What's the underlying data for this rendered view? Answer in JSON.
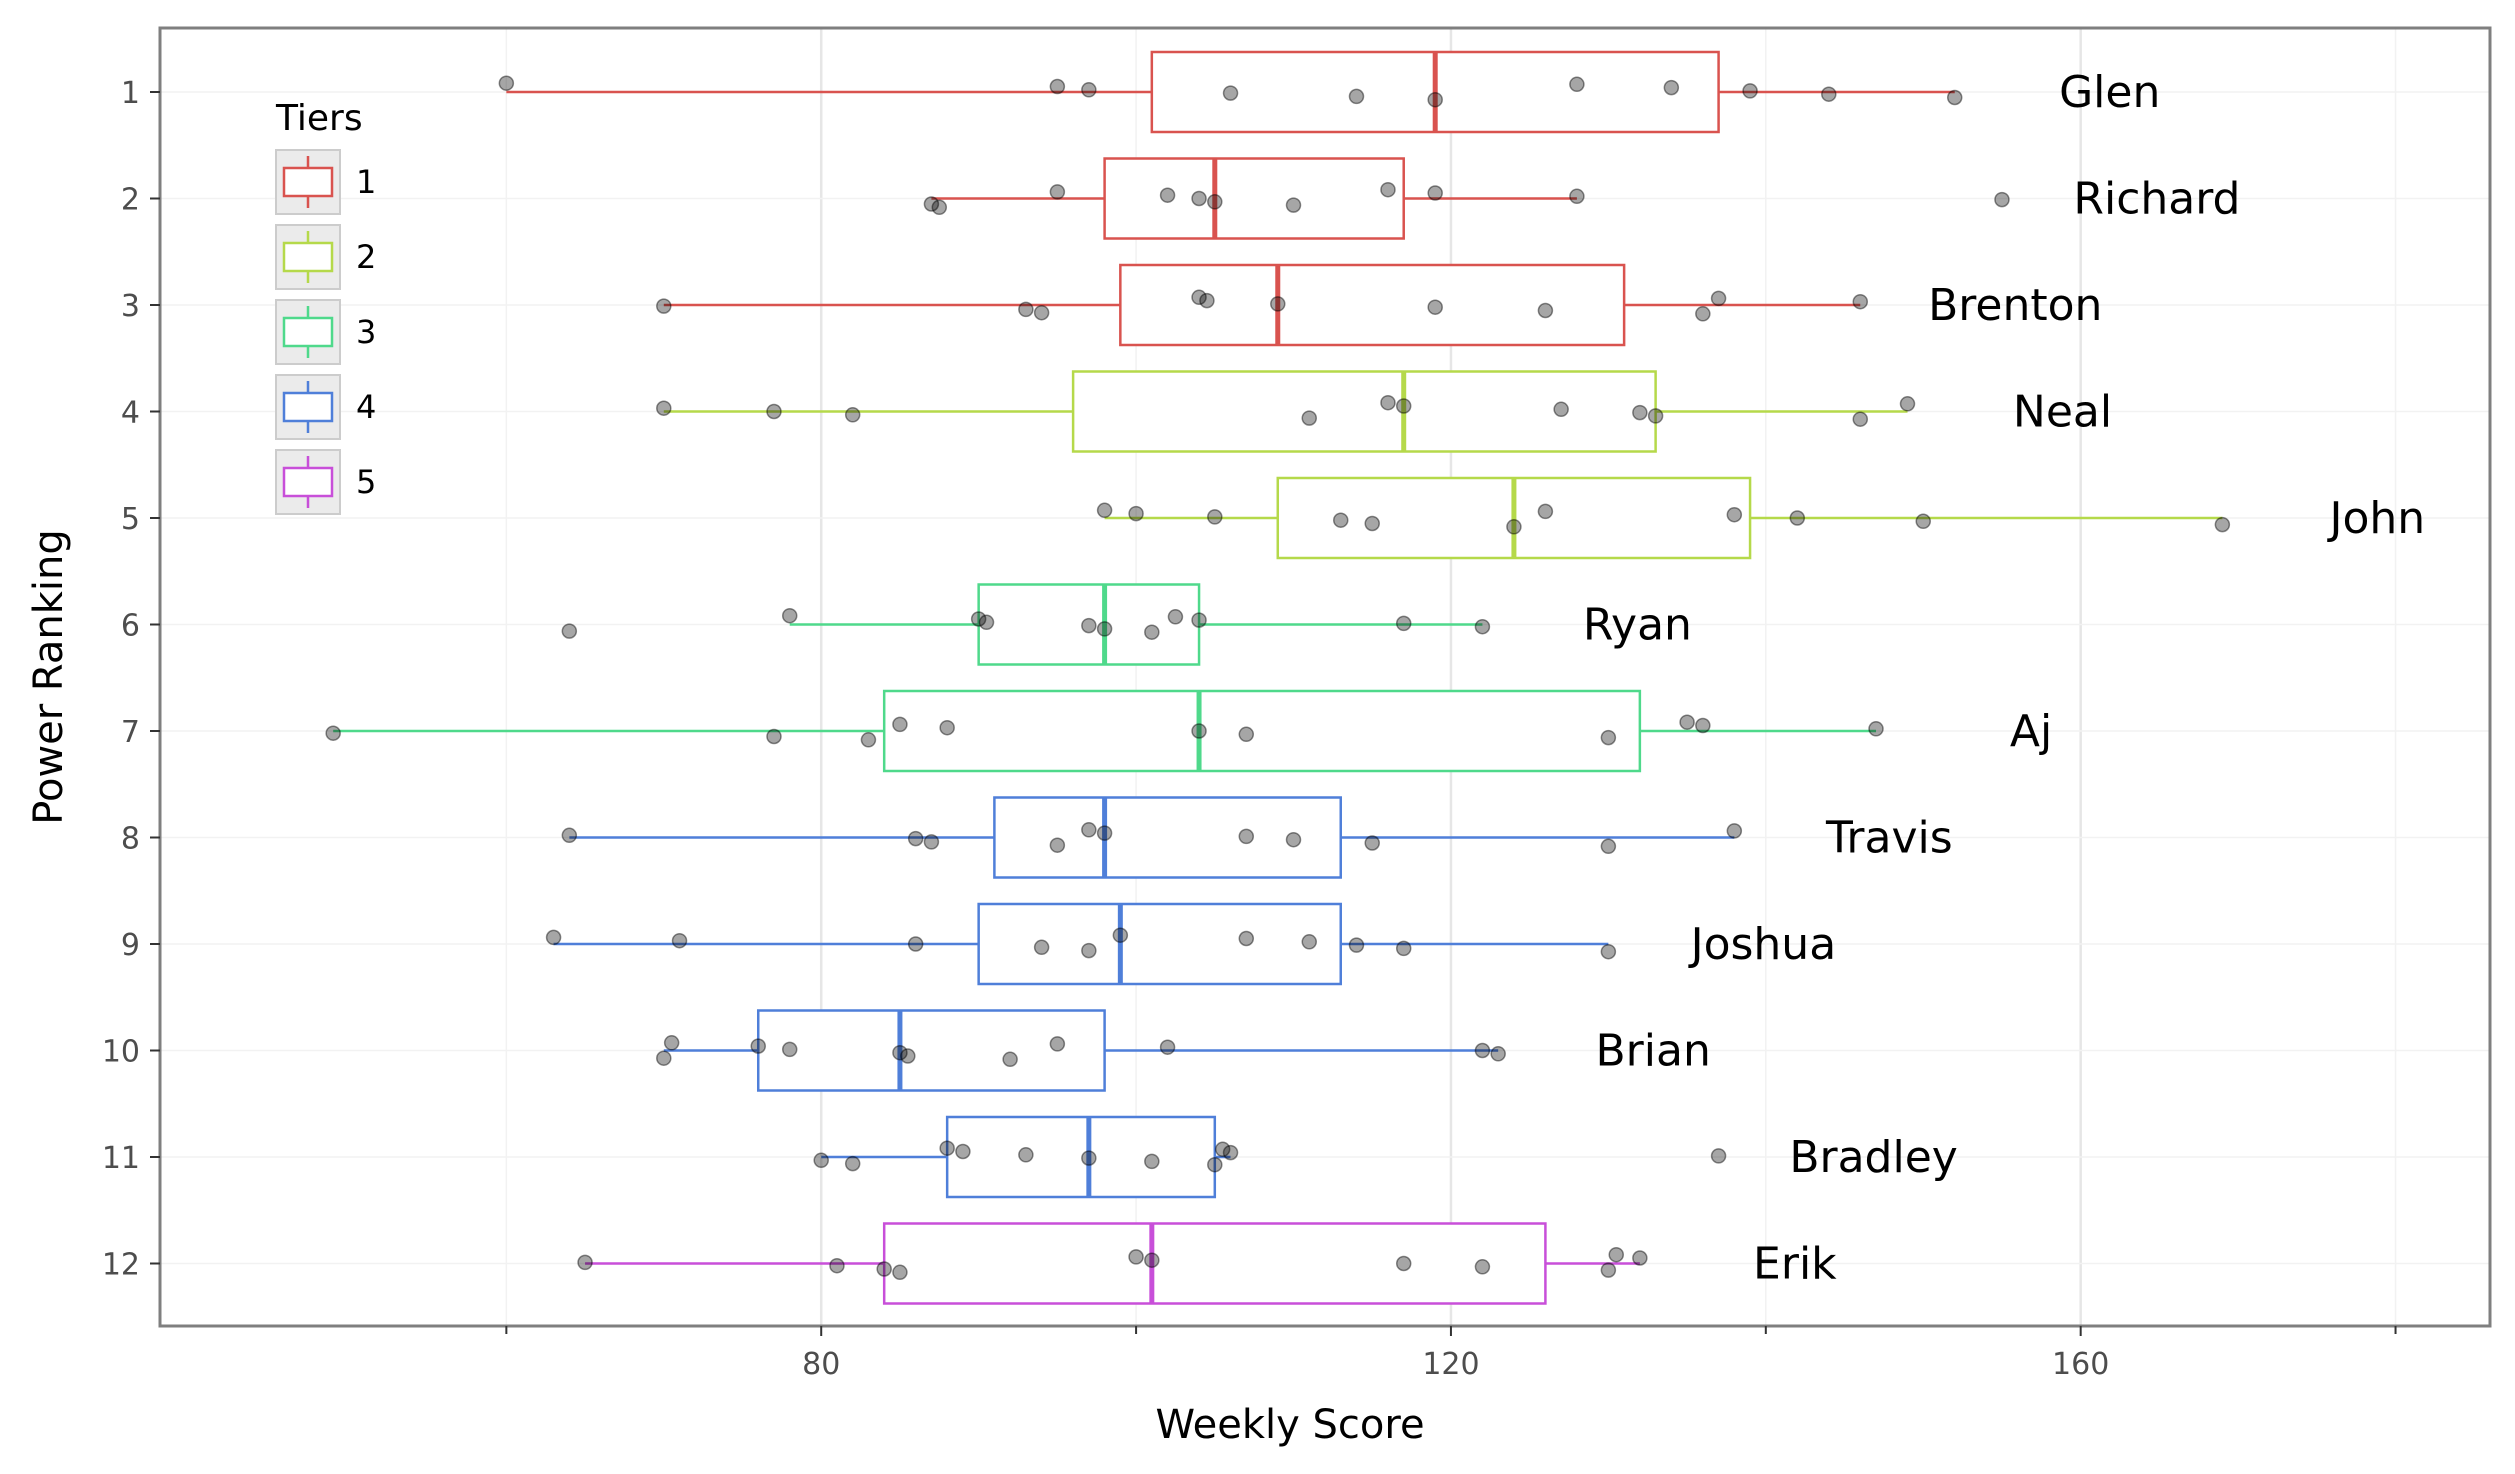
{
  "chart_data": {
    "type": "boxplot",
    "xlabel": "Weekly Score",
    "ylabel": "Power Ranking",
    "xlim": [
      38,
      186
    ],
    "x_ticks": [
      80,
      120,
      160
    ],
    "x_minor_ticks": [
      60,
      100,
      140,
      180
    ],
    "y_categories": [
      "1",
      "2",
      "3",
      "4",
      "5",
      "6",
      "7",
      "8",
      "9",
      "10",
      "11",
      "12"
    ],
    "grid": true,
    "legend": {
      "title": "Tiers",
      "placement": "top-left",
      "items": [
        {
          "label": "1",
          "color": "#d9534f"
        },
        {
          "label": "2",
          "color": "#b5d94a"
        },
        {
          "label": "3",
          "color": "#4fd98b"
        },
        {
          "label": "4",
          "color": "#4f7fd9"
        },
        {
          "label": "5",
          "color": "#c84fd9"
        }
      ]
    },
    "series": [
      {
        "rank": 1,
        "name": "Glen",
        "tier": 1,
        "q1": 101,
        "median": 119,
        "q3": 137,
        "whisker_low": 60,
        "whisker_high": 152,
        "points": [
          60,
          95,
          97,
          106,
          114,
          119,
          128,
          134,
          139,
          144,
          152
        ]
      },
      {
        "rank": 2,
        "name": "Richard",
        "tier": 1,
        "q1": 98,
        "median": 105,
        "q3": 117,
        "whisker_low": 87,
        "whisker_high": 128,
        "points": [
          87,
          87.5,
          95,
          102,
          104,
          105,
          110,
          116,
          119,
          128,
          155
        ]
      },
      {
        "rank": 3,
        "name": "Brenton",
        "tier": 1,
        "q1": 99,
        "median": 109,
        "q3": 131,
        "whisker_low": 70,
        "whisker_high": 146,
        "points": [
          70,
          93,
          94,
          104,
          104.5,
          109,
          119,
          126,
          136,
          137,
          146
        ]
      },
      {
        "rank": 4,
        "name": "Neal",
        "tier": 2,
        "q1": 96,
        "median": 117,
        "q3": 133,
        "whisker_low": 70,
        "whisker_high": 149,
        "points": [
          70,
          77,
          82,
          111,
          116,
          117,
          127,
          132,
          133,
          146,
          149
        ]
      },
      {
        "rank": 5,
        "name": "John",
        "tier": 2,
        "q1": 109,
        "median": 124,
        "q3": 139,
        "whisker_low": 98,
        "whisker_high": 169,
        "points": [
          98,
          100,
          105,
          113,
          115,
          124,
          126,
          138,
          142,
          150,
          169
        ]
      },
      {
        "rank": 6,
        "name": "Ryan",
        "tier": 3,
        "q1": 90,
        "median": 98,
        "q3": 104,
        "whisker_low": 78,
        "whisker_high": 122,
        "points": [
          64,
          78,
          90,
          90.5,
          97,
          98,
          101,
          102.5,
          104,
          117,
          122
        ]
      },
      {
        "rank": 7,
        "name": "Aj",
        "tier": 3,
        "q1": 84,
        "median": 104,
        "q3": 132,
        "whisker_low": 49,
        "whisker_high": 147,
        "points": [
          49,
          77,
          83,
          85,
          88,
          104,
          107,
          130,
          135,
          136,
          147
        ]
      },
      {
        "rank": 8,
        "name": "Travis",
        "tier": 4,
        "q1": 91,
        "median": 98,
        "q3": 113,
        "whisker_low": 64,
        "whisker_high": 138,
        "points": [
          64,
          86,
          87,
          95,
          97,
          98,
          107,
          110,
          115,
          130,
          138
        ]
      },
      {
        "rank": 9,
        "name": "Joshua",
        "tier": 4,
        "q1": 90,
        "median": 99,
        "q3": 113,
        "whisker_low": 63,
        "whisker_high": 130,
        "points": [
          63,
          71,
          86,
          94,
          97,
          99,
          107,
          111,
          114,
          117,
          130
        ]
      },
      {
        "rank": 10,
        "name": "Brian",
        "tier": 4,
        "q1": 76,
        "median": 85,
        "q3": 98,
        "whisker_low": 70,
        "whisker_high": 123,
        "points": [
          70,
          70.5,
          76,
          78,
          85,
          85.5,
          92,
          95,
          102,
          122,
          123
        ]
      },
      {
        "rank": 11,
        "name": "Bradley",
        "tier": 4,
        "q1": 88,
        "median": 97,
        "q3": 105,
        "whisker_low": 80,
        "whisker_high": 106,
        "points": [
          80,
          82,
          88,
          89,
          93,
          97,
          101,
          105,
          105.5,
          106,
          137
        ]
      },
      {
        "rank": 12,
        "name": "Erik",
        "tier": 5,
        "q1": 84,
        "median": 101,
        "q3": 126,
        "whisker_low": 65,
        "whisker_high": 132,
        "points": [
          65,
          81,
          84,
          85,
          100,
          101,
          117,
          122,
          130,
          130.5,
          132
        ]
      }
    ]
  }
}
